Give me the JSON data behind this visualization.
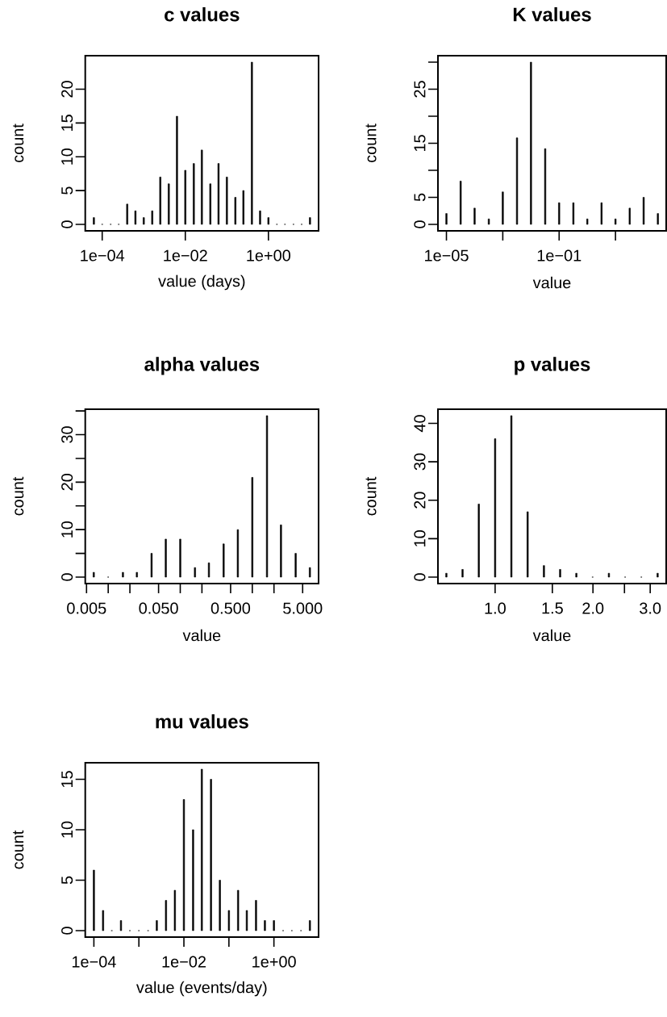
{
  "chart_data": [
    {
      "type": "bar",
      "title": "c values",
      "xlabel": "value (days)",
      "ylabel": "count",
      "color": "#000000",
      "log": "x",
      "x": [
        6.3e-05,
        0.0001,
        0.00016,
        0.00025,
        0.0004,
        0.00063,
        0.001,
        0.0016,
        0.0025,
        0.004,
        0.0063,
        0.01,
        0.016,
        0.025,
        0.04,
        0.063,
        0.1,
        0.16,
        0.25,
        0.4,
        0.63,
        1,
        1.6,
        2.5,
        4,
        6.3,
        10
      ],
      "values": [
        1,
        0,
        0,
        0,
        3,
        2,
        1,
        2,
        7,
        6,
        16,
        8,
        9,
        11,
        6,
        9,
        7,
        4,
        5,
        24,
        2,
        1,
        0,
        0,
        0,
        0,
        1
      ],
      "xlim": [
        3.91e-05,
        16.1
      ],
      "ylim": [
        -0.96,
        24.96
      ],
      "xticks": [
        {
          "value": 0.0001,
          "label": "1e−04"
        },
        {
          "value": 0.01,
          "label": "1e−02"
        },
        {
          "value": 1,
          "label": "1e+00"
        }
      ],
      "yticks": [
        0,
        5,
        10,
        15,
        20
      ]
    },
    {
      "type": "bar",
      "title": "K values",
      "xlabel": "value",
      "ylabel": "count",
      "color": "#000000",
      "log": "x",
      "x": [
        1e-05,
        3.2e-05,
        0.0001,
        0.00032,
        0.001,
        0.0032,
        0.01,
        0.032,
        0.1,
        0.32,
        1,
        3.2,
        10,
        32,
        100,
        320
      ],
      "values": [
        2,
        8,
        3,
        1,
        6,
        16,
        30,
        14,
        4,
        4,
        1,
        4,
        1,
        3,
        5,
        2
      ],
      "xlim": [
        5e-06,
        631
      ],
      "ylim": [
        -1.2,
        31.2
      ],
      "xticks": [
        {
          "value": 1e-05,
          "label": "1e−05"
        },
        {
          "value": 0.001,
          "label": null
        },
        {
          "value": 0.1,
          "label": "1e−01"
        },
        {
          "value": 10,
          "label": null
        }
      ],
      "yticks": [
        0,
        5,
        {
          "value": 10,
          "label": null
        },
        15,
        {
          "value": 20,
          "label": null
        },
        25,
        {
          "value": 30,
          "label": null
        }
      ]
    },
    {
      "type": "bar",
      "title": "alpha values",
      "xlabel": "value",
      "ylabel": "count",
      "color": "#000000",
      "log": "x",
      "x": [
        0.0063,
        0.01,
        0.016,
        0.025,
        0.04,
        0.063,
        0.1,
        0.16,
        0.25,
        0.4,
        0.63,
        1,
        1.6,
        2.5,
        4,
        6.3
      ],
      "values": [
        1,
        0,
        1,
        1,
        5,
        8,
        8,
        2,
        3,
        7,
        10,
        21,
        34,
        11,
        5,
        2
      ],
      "xlim": [
        0.0048,
        8.32
      ],
      "ylim": [
        -1.36,
        35.36
      ],
      "xticks": [
        {
          "value": 0.005,
          "label": "0.005"
        },
        {
          "value": 0.01,
          "label": null
        },
        {
          "value": 0.02,
          "label": null
        },
        {
          "value": 0.05,
          "label": "0.050"
        },
        {
          "value": 0.1,
          "label": null
        },
        {
          "value": 0.2,
          "label": null
        },
        {
          "value": 0.5,
          "label": "0.500"
        },
        {
          "value": 1,
          "label": null
        },
        {
          "value": 2,
          "label": null
        },
        {
          "value": 5,
          "label": "5.000"
        }
      ],
      "yticks": [
        0,
        {
          "value": 5,
          "label": null
        },
        10,
        {
          "value": 15,
          "label": null
        },
        20,
        {
          "value": 25,
          "label": null
        },
        30,
        {
          "value": 35,
          "label": null
        }
      ]
    },
    {
      "type": "bar",
      "title": "p values",
      "xlabel": "value",
      "ylabel": "count",
      "color": "#000000",
      "log": "x",
      "x": [
        0.708,
        0.794,
        0.891,
        1,
        1.122,
        1.259,
        1.413,
        1.585,
        1.778,
        1.995,
        2.239,
        2.512,
        2.818,
        3.162
      ],
      "values": [
        1,
        2,
        19,
        36,
        42,
        17,
        3,
        2,
        1,
        0,
        1,
        0,
        0,
        1
      ],
      "xlim": [
        0.667,
        3.36
      ],
      "ylim": [
        -1.68,
        43.68
      ],
      "xticks": [
        {
          "value": 1.0,
          "label": "1.0"
        },
        {
          "value": 1.5,
          "label": "1.5"
        },
        {
          "value": 2.0,
          "label": "2.0"
        },
        {
          "value": 2.5,
          "label": null
        },
        {
          "value": 3.0,
          "label": "3.0"
        }
      ],
      "yticks": [
        0,
        10,
        20,
        30,
        40
      ]
    },
    {
      "type": "bar",
      "title": "mu values",
      "xlabel": "value (events/day)",
      "ylabel": "count",
      "color": "#000000",
      "log": "x",
      "x": [
        0.0001,
        0.00016,
        0.00025,
        0.0004,
        0.00063,
        0.001,
        0.0016,
        0.0025,
        0.004,
        0.0063,
        0.01,
        0.016,
        0.025,
        0.04,
        0.063,
        0.1,
        0.16,
        0.25,
        0.4,
        0.63,
        1,
        1.6,
        2.5,
        4,
        6.3
      ],
      "values": [
        6,
        2,
        0,
        1,
        0,
        0,
        0,
        1,
        3,
        4,
        13,
        10,
        16,
        15,
        5,
        2,
        4,
        2,
        3,
        1,
        1,
        0,
        0,
        0,
        1
      ],
      "xlim": [
        6.43e-05,
        9.82
      ],
      "ylim": [
        -0.64,
        16.64
      ],
      "xticks": [
        {
          "value": 0.0001,
          "label": "1e−04"
        },
        {
          "value": 0.001,
          "label": null
        },
        {
          "value": 0.01,
          "label": "1e−02"
        },
        {
          "value": 0.1,
          "label": null
        },
        {
          "value": 1,
          "label": "1e+00"
        }
      ],
      "yticks": [
        0,
        5,
        10,
        15
      ]
    }
  ]
}
